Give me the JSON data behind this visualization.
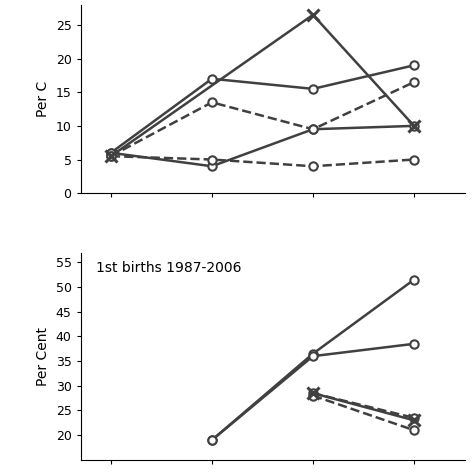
{
  "top_panel": {
    "ylabel": "Per C",
    "ylim": [
      0,
      30
    ],
    "yticks": [
      0,
      5,
      10,
      15,
      20,
      25
    ],
    "x_positions": [
      1,
      2,
      3,
      4
    ],
    "series": [
      {
        "y": [
          6.0,
          17.0,
          15.5,
          19.0
        ],
        "style": "solid",
        "marker": "o"
      },
      {
        "y": [
          6.0,
          4.0,
          9.5,
          10.0
        ],
        "style": "solid",
        "marker": "o"
      },
      {
        "y": [
          5.5,
          13.5,
          9.5,
          16.5
        ],
        "style": "dashed",
        "marker": "o"
      },
      {
        "y": [
          5.5,
          5.0,
          4.0,
          5.0
        ],
        "style": "dashed",
        "marker": "o"
      },
      {
        "y": [
          5.5,
          null,
          26.5,
          10.0
        ],
        "style": "solid",
        "marker": "x"
      }
    ]
  },
  "bottom_panel": {
    "ylabel": "Per Cent",
    "label": "1st births 1987-2006",
    "ylim": [
      15,
      57
    ],
    "yticks": [
      20,
      25,
      30,
      35,
      40,
      45,
      50,
      55
    ],
    "x_positions": [
      1,
      2,
      3,
      4
    ],
    "series": [
      {
        "y": [
          null,
          19.0,
          36.5,
          51.5
        ],
        "style": "solid",
        "marker": "o"
      },
      {
        "y": [
          null,
          19.0,
          36.0,
          38.5
        ],
        "style": "solid",
        "marker": "o"
      },
      {
        "y": [
          null,
          null,
          28.5,
          23.5
        ],
        "style": "dashed",
        "marker": "o"
      },
      {
        "y": [
          null,
          null,
          28.0,
          21.0
        ],
        "style": "dashed",
        "marker": "o"
      },
      {
        "y": [
          null,
          null,
          28.5,
          23.0
        ],
        "style": "solid",
        "marker": "x"
      }
    ]
  },
  "line_color": "#404040",
  "linewidth": 1.8,
  "markersize": 6,
  "fontsize_ylabel": 10,
  "fontsize_label": 10
}
